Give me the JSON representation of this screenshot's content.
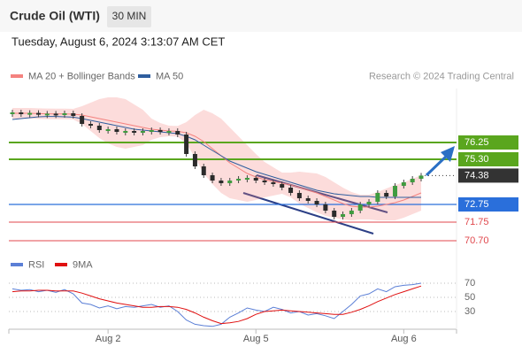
{
  "header": {
    "title": "Crude Oil (WTI)",
    "interval": "30 MIN",
    "timestamp": "Tuesday, August 6, 2024 3:13:07 AM CET"
  },
  "chart_data": [
    {
      "type": "candlestick",
      "credit": "Research © 2024 Trading Central",
      "ylim": [
        70,
        79.3
      ],
      "close": {
        "values": [
          77.95,
          77.9,
          77.92,
          77.85,
          77.88,
          77.8,
          77.9,
          77.75,
          77.3,
          77.2,
          76.95,
          77.0,
          76.85,
          76.9,
          76.85,
          76.9,
          76.95,
          76.88,
          76.9,
          76.7,
          75.6,
          74.9,
          74.4,
          74.1,
          73.95,
          74.1,
          74.2,
          74.25,
          74.1,
          74.0,
          73.9,
          73.7,
          73.4,
          73.1,
          72.95,
          72.75,
          72.4,
          72.05,
          72.2,
          72.4,
          72.75,
          72.9,
          73.4,
          73.2,
          73.8,
          74.0,
          74.2,
          74.38
        ]
      },
      "series": [
        {
          "name": "MA 20 + Bollinger Bands",
          "color": "#f4827f",
          "values": [
            77.9,
            77.9,
            77.9,
            77.88,
            77.87,
            77.86,
            77.86,
            77.85,
            77.8,
            77.7,
            77.6,
            77.5,
            77.4,
            77.3,
            77.2,
            77.1,
            77.0,
            76.95,
            76.9,
            76.88,
            76.8,
            76.6,
            76.3,
            75.9,
            75.5,
            75.1,
            74.8,
            74.5,
            74.3,
            74.15,
            74.05,
            73.95,
            73.85,
            73.7,
            73.55,
            73.4,
            73.2,
            73.0,
            72.8,
            72.65,
            72.6,
            72.6,
            72.65,
            72.75,
            72.85,
            73.0,
            73.2,
            73.4
          ],
          "upper": [
            78.2,
            78.2,
            78.2,
            78.18,
            78.17,
            78.16,
            78.16,
            78.15,
            78.3,
            78.5,
            78.7,
            78.8,
            78.8,
            78.7,
            78.4,
            78.1,
            77.6,
            77.35,
            77.2,
            77.18,
            77.4,
            77.8,
            78.1,
            77.9,
            77.6,
            77.1,
            76.6,
            76.1,
            75.6,
            75.15,
            74.85,
            74.55,
            74.55,
            74.6,
            74.55,
            74.5,
            74.3,
            74.0,
            73.7,
            73.45,
            73.3,
            73.3,
            73.45,
            73.65,
            73.85,
            74.0,
            74.2,
            74.4
          ],
          "lower": [
            77.6,
            77.6,
            77.6,
            77.58,
            77.57,
            77.56,
            77.56,
            77.55,
            77.3,
            76.9,
            76.5,
            76.2,
            76.0,
            75.9,
            76.0,
            76.1,
            76.4,
            76.55,
            76.6,
            76.58,
            76.2,
            75.4,
            74.5,
            73.9,
            73.4,
            73.1,
            73.0,
            72.9,
            73.0,
            73.15,
            73.25,
            73.35,
            73.15,
            72.8,
            72.55,
            72.3,
            72.1,
            72.0,
            71.9,
            71.85,
            71.9,
            71.9,
            71.85,
            71.85,
            71.85,
            72.0,
            72.2,
            72.4
          ]
        },
        {
          "name": "MA 50",
          "color": "#2f5e9e",
          "values": [
            77.55,
            77.6,
            77.65,
            77.7,
            77.72,
            77.72,
            77.7,
            77.68,
            77.6,
            77.5,
            77.4,
            77.3,
            77.2,
            77.1,
            77.0,
            76.95,
            76.9,
            76.85,
            76.8,
            76.75,
            76.6,
            76.4,
            76.1,
            75.8,
            75.5,
            75.2,
            75.0,
            74.8,
            74.6,
            74.45,
            74.3,
            74.15,
            74.0,
            73.85,
            73.7,
            73.55,
            73.45,
            73.35,
            73.3,
            73.25,
            73.2,
            73.2,
            73.15,
            73.15,
            73.15,
            73.15,
            73.15,
            73.15
          ]
        }
      ],
      "levels": [
        {
          "value": 76.25,
          "color": "#5aa61e",
          "box": true
        },
        {
          "value": 75.3,
          "label": "75.30",
          "color": "#5aa61e",
          "box": true
        },
        {
          "value": 72.75,
          "color": "#2a6fdb",
          "box": true
        },
        {
          "value": 71.75,
          "color": "#e0474c",
          "box": false
        },
        {
          "value": 70.7,
          "label": "70.70",
          "color": "#e0474c",
          "box": false
        }
      ]
    },
    {
      "type": "line",
      "ylim": [
        7.5,
        82.5
      ],
      "yticks": [
        70,
        50,
        30
      ],
      "categories": [
        null,
        null,
        null,
        null,
        null,
        null,
        null,
        null,
        null,
        null,
        null,
        "Aug 2",
        null,
        null,
        null,
        null,
        null,
        null,
        null,
        null,
        null,
        null,
        null,
        null,
        null,
        null,
        null,
        null,
        "Aug 5",
        null,
        null,
        null,
        null,
        null,
        null,
        null,
        null,
        null,
        null,
        null,
        null,
        null,
        null,
        null,
        null,
        "Aug 6",
        null,
        null
      ],
      "series": [
        {
          "name": "RSI",
          "color": "#5b7fd6",
          "values": [
            62,
            60,
            61,
            58,
            60,
            57,
            61,
            55,
            42,
            40,
            35,
            38,
            34,
            37,
            36,
            38,
            40,
            36,
            38,
            30,
            18,
            12,
            10,
            9,
            12,
            22,
            28,
            35,
            32,
            30,
            36,
            33,
            28,
            30,
            25,
            27,
            24,
            20,
            30,
            40,
            52,
            55,
            62,
            58,
            65,
            67,
            68,
            70
          ]
        },
        {
          "name": "9MA",
          "color": "#e01010",
          "values": [
            58,
            59,
            59,
            60,
            60,
            59,
            59,
            59,
            56,
            52,
            48,
            45,
            42,
            40,
            38,
            36,
            36,
            37,
            37,
            36,
            33,
            28,
            22,
            17,
            13,
            14,
            16,
            20,
            26,
            30,
            31,
            32,
            31,
            30,
            29,
            28,
            27,
            26,
            26,
            29,
            33,
            38,
            44,
            49,
            54,
            58,
            62,
            66
          ]
        }
      ]
    }
  ]
}
